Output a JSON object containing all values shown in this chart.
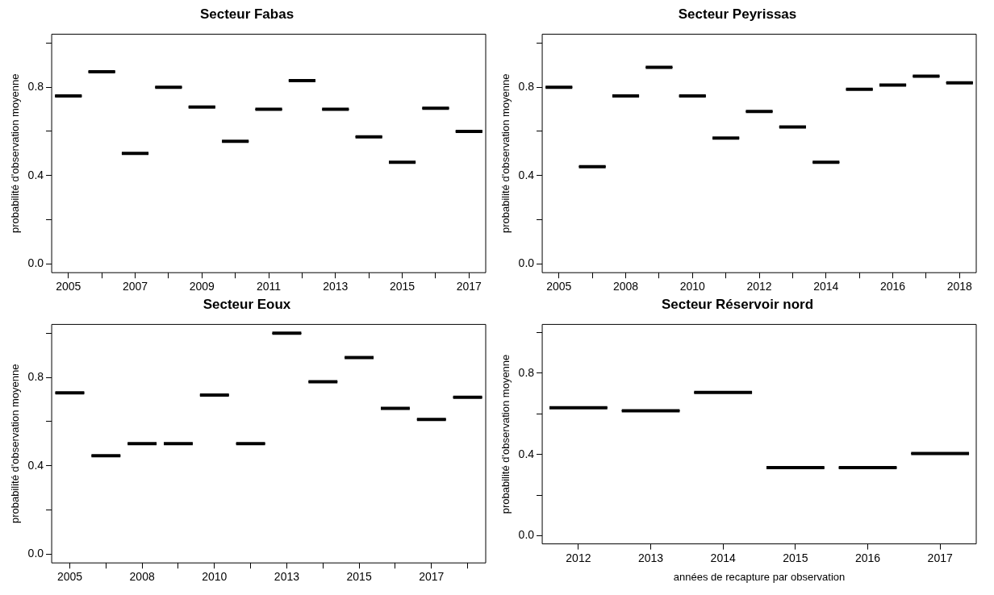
{
  "chart_data": [
    {
      "type": "box",
      "title": "Secteur Fabas",
      "ylabel": "probabilité d'observation moyenne",
      "categories": [
        "2005",
        null,
        "2007",
        null,
        "2009",
        null,
        "2011",
        null,
        "2013",
        null,
        "2015",
        null,
        "2017"
      ],
      "color": "#000000",
      "ylim": [
        -0.04,
        1.04
      ],
      "yticks": [
        {
          "value": 0,
          "label": "0.0"
        },
        {
          "value": 0.2,
          "label": null
        },
        {
          "value": 0.4,
          "label": "0.4"
        },
        {
          "value": 0.6,
          "label": null
        },
        {
          "value": 0.8,
          "label": "0.8"
        },
        {
          "value": 1,
          "label": null
        }
      ],
      "boxes": [
        {
          "low": 0.76,
          "q1": 0.76,
          "median": 0.76,
          "q3": 0.76,
          "high": 0.76
        },
        {
          "low": 0.87,
          "q1": 0.87,
          "median": 0.87,
          "q3": 0.87,
          "high": 0.87
        },
        {
          "low": 0.5,
          "q1": 0.5,
          "median": 0.5,
          "q3": 0.5,
          "high": 0.5
        },
        {
          "low": 0.8,
          "q1": 0.8,
          "median": 0.8,
          "q3": 0.8,
          "high": 0.8
        },
        {
          "low": 0.71,
          "q1": 0.71,
          "median": 0.71,
          "q3": 0.71,
          "high": 0.71
        },
        {
          "low": 0.555,
          "q1": 0.555,
          "median": 0.555,
          "q3": 0.555,
          "high": 0.555
        },
        {
          "low": 0.7,
          "q1": 0.7,
          "median": 0.7,
          "q3": 0.7,
          "high": 0.7
        },
        {
          "low": 0.83,
          "q1": 0.83,
          "median": 0.83,
          "q3": 0.83,
          "high": 0.83
        },
        {
          "low": 0.7,
          "q1": 0.7,
          "median": 0.7,
          "q3": 0.7,
          "high": 0.7
        },
        {
          "low": 0.575,
          "q1": 0.575,
          "median": 0.575,
          "q3": 0.575,
          "high": 0.575
        },
        {
          "low": 0.46,
          "q1": 0.46,
          "median": 0.46,
          "q3": 0.46,
          "high": 0.46
        },
        {
          "low": 0.705,
          "q1": 0.705,
          "median": 0.705,
          "q3": 0.705,
          "high": 0.705
        },
        {
          "low": 0.6,
          "q1": 0.6,
          "median": 0.6,
          "q3": 0.6,
          "high": 0.6
        }
      ]
    },
    {
      "type": "box",
      "title": "Secteur Peyrissas",
      "ylabel": "probabilité d'observation moyenne",
      "categories": [
        "2005",
        null,
        "2008",
        null,
        "2010",
        null,
        "2012",
        null,
        "2014",
        null,
        "2016",
        null,
        "2018"
      ],
      "color": "#000000",
      "ylim": [
        -0.04,
        1.04
      ],
      "yticks": [
        {
          "value": 0,
          "label": "0.0"
        },
        {
          "value": 0.2,
          "label": null
        },
        {
          "value": 0.4,
          "label": "0.4"
        },
        {
          "value": 0.6,
          "label": null
        },
        {
          "value": 0.8,
          "label": "0.8"
        },
        {
          "value": 1,
          "label": null
        }
      ],
      "boxes": [
        {
          "low": 0.8,
          "q1": 0.8,
          "median": 0.8,
          "q3": 0.8,
          "high": 0.8
        },
        {
          "low": 0.44,
          "q1": 0.44,
          "median": 0.44,
          "q3": 0.44,
          "high": 0.44
        },
        {
          "low": 0.76,
          "q1": 0.76,
          "median": 0.76,
          "q3": 0.76,
          "high": 0.76
        },
        {
          "low": 0.89,
          "q1": 0.89,
          "median": 0.89,
          "q3": 0.89,
          "high": 0.89
        },
        {
          "low": 0.76,
          "q1": 0.76,
          "median": 0.76,
          "q3": 0.76,
          "high": 0.76
        },
        {
          "low": 0.57,
          "q1": 0.57,
          "median": 0.57,
          "q3": 0.57,
          "high": 0.57
        },
        {
          "low": 0.69,
          "q1": 0.69,
          "median": 0.69,
          "q3": 0.69,
          "high": 0.69
        },
        {
          "low": 0.62,
          "q1": 0.62,
          "median": 0.62,
          "q3": 0.62,
          "high": 0.62
        },
        {
          "low": 0.46,
          "q1": 0.46,
          "median": 0.46,
          "q3": 0.46,
          "high": 0.46
        },
        {
          "low": 0.79,
          "q1": 0.79,
          "median": 0.79,
          "q3": 0.79,
          "high": 0.79
        },
        {
          "low": 0.81,
          "q1": 0.81,
          "median": 0.81,
          "q3": 0.81,
          "high": 0.81
        },
        {
          "low": 0.85,
          "q1": 0.85,
          "median": 0.85,
          "q3": 0.85,
          "high": 0.85
        },
        {
          "low": 0.82,
          "q1": 0.82,
          "median": 0.82,
          "q3": 0.82,
          "high": 0.82
        }
      ]
    },
    {
      "type": "box",
      "title": "Secteur Eoux",
      "ylabel": "probabilité d'observation moyenne",
      "categories": [
        "2005",
        null,
        "2008",
        null,
        "2010",
        null,
        "2013",
        null,
        "2015",
        null,
        "2017",
        null
      ],
      "color": "#000000",
      "ylim": [
        -0.04,
        1.04
      ],
      "yticks": [
        {
          "value": 0,
          "label": "0.0"
        },
        {
          "value": 0.2,
          "label": null
        },
        {
          "value": 0.4,
          "label": "0.4"
        },
        {
          "value": 0.6,
          "label": null
        },
        {
          "value": 0.8,
          "label": "0.8"
        },
        {
          "value": 1,
          "label": null
        }
      ],
      "boxes": [
        {
          "low": 0.73,
          "q1": 0.73,
          "median": 0.73,
          "q3": 0.73,
          "high": 0.73
        },
        {
          "low": 0.445,
          "q1": 0.445,
          "median": 0.445,
          "q3": 0.445,
          "high": 0.445
        },
        {
          "low": 0.5,
          "q1": 0.5,
          "median": 0.5,
          "q3": 0.5,
          "high": 0.5
        },
        {
          "low": 0.5,
          "q1": 0.5,
          "median": 0.5,
          "q3": 0.5,
          "high": 0.5
        },
        {
          "low": 0.72,
          "q1": 0.72,
          "median": 0.72,
          "q3": 0.72,
          "high": 0.72
        },
        {
          "low": 0.5,
          "q1": 0.5,
          "median": 0.5,
          "q3": 0.5,
          "high": 0.5
        },
        {
          "low": 1,
          "q1": 1,
          "median": 1,
          "q3": 1,
          "high": 1
        },
        {
          "low": 0.78,
          "q1": 0.78,
          "median": 0.78,
          "q3": 0.78,
          "high": 0.78
        },
        {
          "low": 0.89,
          "q1": 0.89,
          "median": 0.89,
          "q3": 0.89,
          "high": 0.89
        },
        {
          "low": 0.66,
          "q1": 0.66,
          "median": 0.66,
          "q3": 0.66,
          "high": 0.66
        },
        {
          "low": 0.61,
          "q1": 0.61,
          "median": 0.61,
          "q3": 0.61,
          "high": 0.61
        },
        {
          "low": 0.71,
          "q1": 0.71,
          "median": 0.71,
          "q3": 0.71,
          "high": 0.71
        }
      ]
    },
    {
      "type": "box",
      "title": "Secteur Réservoir nord",
      "xlabel": "années de recapture par observation",
      "ylabel": "probabilité d'observation moyenne",
      "categories": [
        "2012",
        "2013",
        "2014",
        "2015",
        "2016",
        "2017"
      ],
      "color": "#000000",
      "ylim": [
        -0.04,
        1.04
      ],
      "yticks": [
        {
          "value": 0,
          "label": "0.0"
        },
        {
          "value": 0.2,
          "label": null
        },
        {
          "value": 0.4,
          "label": "0.4"
        },
        {
          "value": 0.6,
          "label": null
        },
        {
          "value": 0.8,
          "label": "0.8"
        },
        {
          "value": 1,
          "label": null
        }
      ],
      "boxes": [
        {
          "low": 0.63,
          "q1": 0.63,
          "median": 0.63,
          "q3": 0.63,
          "high": 0.63
        },
        {
          "low": 0.615,
          "q1": 0.615,
          "median": 0.615,
          "q3": 0.615,
          "high": 0.615
        },
        {
          "low": 0.705,
          "q1": 0.705,
          "median": 0.705,
          "q3": 0.705,
          "high": 0.705
        },
        {
          "low": 0.335,
          "q1": 0.335,
          "median": 0.335,
          "q3": 0.335,
          "high": 0.335
        },
        {
          "low": 0.335,
          "q1": 0.335,
          "median": 0.335,
          "q3": 0.335,
          "high": 0.335
        },
        {
          "low": 0.405,
          "q1": 0.405,
          "median": 0.405,
          "q3": 0.405,
          "high": 0.405
        }
      ]
    }
  ]
}
